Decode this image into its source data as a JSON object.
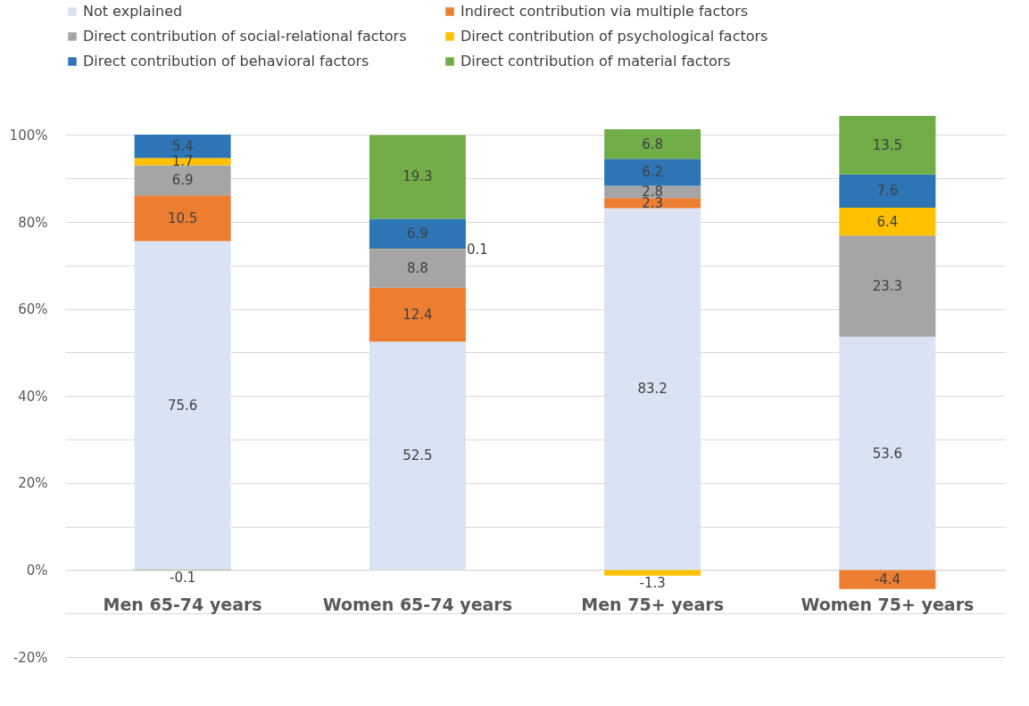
{
  "chart_data": {
    "type": "bar",
    "stacked": true,
    "categories": [
      "Men 65-74 years",
      "Women 65-74 years",
      "Men 75+ years",
      "Women 75+ years"
    ],
    "series": [
      {
        "name": "Not explained",
        "color": "#dae3f3",
        "values": [
          75.6,
          52.5,
          83.2,
          53.6
        ]
      },
      {
        "name": "Indirect contribution via multiple factors",
        "color": "#ed7d31",
        "values": [
          10.5,
          12.4,
          2.3,
          -4.4
        ]
      },
      {
        "name": "Direct contribution of social-relational factors",
        "color": "#a5a5a5",
        "values": [
          6.9,
          8.8,
          2.8,
          23.3
        ]
      },
      {
        "name": "Direct contribution of psychological factors",
        "color": "#ffc000",
        "values": [
          1.7,
          0.1,
          -1.3,
          6.4
        ]
      },
      {
        "name": "Direct contribution of behavioral factors",
        "color": "#2e75b6",
        "values": [
          5.4,
          6.9,
          6.2,
          7.6
        ]
      },
      {
        "name": "Direct contribution of material factors",
        "color": "#70ad47",
        "values": [
          -0.1,
          19.3,
          6.8,
          13.5
        ]
      }
    ],
    "ylim": [
      -20,
      105
    ],
    "yticks": [
      {
        "value": -20,
        "label": "-20%"
      },
      {
        "value": -10,
        "label": null
      },
      {
        "value": 0,
        "label": "0%"
      },
      {
        "value": 10,
        "label": null
      },
      {
        "value": 20,
        "label": "20%"
      },
      {
        "value": 30,
        "label": null
      },
      {
        "value": 40,
        "label": "40%"
      },
      {
        "value": 50,
        "label": null
      },
      {
        "value": 60,
        "label": "60%"
      },
      {
        "value": 70,
        "label": null
      },
      {
        "value": 80,
        "label": "80%"
      },
      {
        "value": 90,
        "label": null
      },
      {
        "value": 100,
        "label": "100%"
      }
    ],
    "grid": true,
    "legend": "top",
    "data_labels": true
  }
}
